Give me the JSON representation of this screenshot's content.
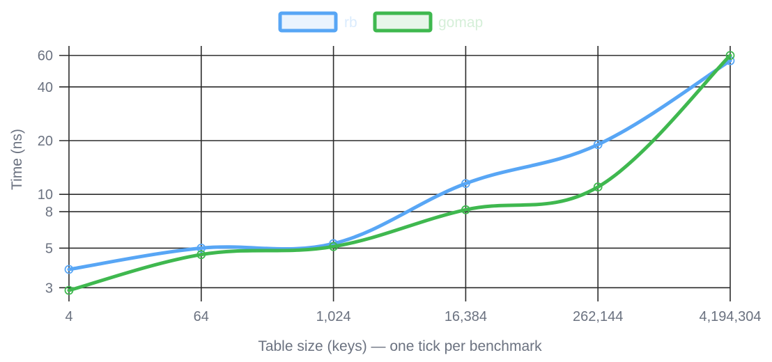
{
  "chart_data": {
    "type": "line",
    "xlabel": "Table size (keys) — one tick per benchmark",
    "ylabel": "Time (ns)",
    "x_scale": "log",
    "y_scale": "log",
    "x": [
      4,
      64,
      1024,
      16384,
      262144,
      4194304
    ],
    "x_tick_labels": [
      "4",
      "64",
      "1,024",
      "16,384",
      "262,144",
      "4,194,304"
    ],
    "y_ticks": [
      3,
      5,
      8,
      10,
      20,
      40,
      60
    ],
    "y_tick_labels": [
      "3",
      "5",
      "8",
      "10",
      "20",
      "40",
      "60"
    ],
    "ylim": [
      2.8,
      66
    ],
    "grid": true,
    "legend_position": "top-center",
    "series": [
      {
        "name": "rb",
        "color": "#58a6f5",
        "values": [
          3.8,
          5.0,
          5.3,
          11.5,
          19.0,
          56.0
        ]
      },
      {
        "name": "gomap",
        "color": "#3fb84f",
        "values": [
          2.9,
          4.6,
          5.1,
          8.2,
          11.0,
          60.0
        ]
      }
    ]
  }
}
